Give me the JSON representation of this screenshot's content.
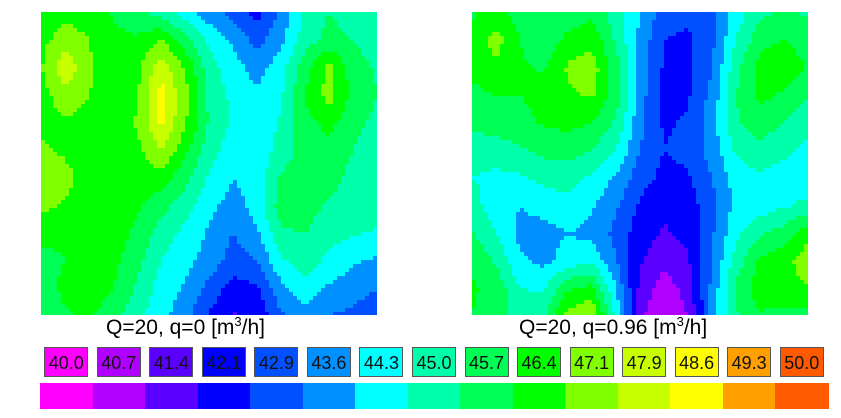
{
  "chart_data": [
    {
      "type": "heatmap",
      "caption_main": "Q=20, q=0 [m",
      "caption_sup": "3",
      "caption_tail": "/h]",
      "levels": [
        40.0,
        40.7,
        41.4,
        42.1,
        42.9,
        43.6,
        44.3,
        45.0,
        45.7,
        46.4,
        47.1,
        47.9,
        48.6,
        49.3,
        50.0
      ],
      "grid": [
        [
          46.6,
          46.9,
          46.8,
          46.3,
          45.9,
          45.3,
          44.6,
          43.9,
          43.3,
          42.6,
          43.8,
          45.2,
          45.7,
          45.4,
          45.1
        ],
        [
          46.9,
          47.4,
          47.1,
          46.6,
          46.5,
          47.1,
          46.0,
          44.8,
          44.2,
          43.3,
          44.1,
          45.4,
          45.9,
          45.7,
          45.3
        ],
        [
          47.0,
          48.6,
          47.2,
          46.7,
          46.9,
          48.4,
          47.0,
          45.3,
          44.6,
          44.0,
          44.7,
          46.1,
          47.3,
          46.0,
          45.6
        ],
        [
          46.8,
          47.5,
          47.1,
          46.8,
          47.0,
          48.9,
          47.4,
          45.5,
          44.8,
          44.4,
          44.9,
          46.5,
          47.4,
          46.2,
          45.7
        ],
        [
          46.9,
          47.0,
          46.9,
          46.6,
          47.2,
          48.8,
          47.2,
          45.6,
          44.9,
          44.5,
          45.1,
          46.2,
          46.6,
          45.9,
          45.5
        ],
        [
          47.2,
          47.0,
          46.7,
          46.4,
          46.9,
          47.9,
          46.6,
          45.3,
          44.6,
          44.5,
          45.3,
          46.0,
          46.2,
          45.7,
          45.3
        ],
        [
          47.6,
          47.3,
          46.8,
          46.5,
          46.7,
          46.8,
          45.9,
          44.9,
          44.3,
          44.6,
          45.8,
          46.2,
          45.9,
          45.5,
          45.4
        ],
        [
          47.3,
          47.0,
          46.9,
          46.9,
          46.5,
          46.0,
          45.3,
          44.5,
          44.0,
          44.6,
          46.1,
          46.0,
          45.6,
          45.6,
          45.5
        ],
        [
          46.6,
          46.5,
          46.8,
          46.8,
          46.2,
          45.4,
          44.8,
          44.2,
          43.6,
          44.2,
          45.6,
          45.7,
          45.3,
          45.1,
          44.9
        ],
        [
          46.2,
          46.4,
          46.7,
          46.6,
          45.9,
          45.0,
          44.5,
          44.0,
          43.3,
          43.6,
          44.9,
          45.4,
          44.8,
          44.4,
          44.2
        ],
        [
          46.0,
          46.6,
          46.8,
          46.4,
          45.6,
          44.7,
          44.2,
          43.4,
          42.6,
          42.8,
          44.1,
          44.7,
          44.2,
          43.9,
          43.6
        ],
        [
          45.8,
          46.3,
          46.5,
          46.0,
          45.2,
          44.5,
          43.9,
          42.8,
          42.0,
          42.3,
          43.5,
          44.0,
          43.6,
          43.4,
          43.2
        ]
      ]
    },
    {
      "type": "heatmap",
      "caption_main": "Q=20, q=0.96 [m",
      "caption_sup": "3",
      "caption_tail": "/h]",
      "levels": [
        40.0,
        40.7,
        41.4,
        42.1,
        42.9,
        43.6,
        44.3,
        45.0,
        45.7,
        46.4,
        47.1,
        47.9,
        48.6,
        49.3,
        50.0
      ],
      "grid": [
        [
          46.3,
          46.6,
          46.1,
          45.7,
          45.9,
          46.2,
          45.3,
          44.3,
          43.2,
          43.0,
          43.4,
          44.6,
          45.5,
          45.8,
          45.6
        ],
        [
          46.5,
          47.4,
          46.4,
          45.9,
          46.6,
          46.9,
          45.6,
          44.1,
          42.9,
          42.8,
          43.4,
          45.0,
          46.1,
          46.4,
          46.0
        ],
        [
          46.6,
          47.0,
          46.5,
          46.3,
          47.2,
          47.5,
          46.0,
          44.0,
          42.8,
          42.7,
          43.6,
          45.4,
          46.7,
          47.0,
          46.3
        ],
        [
          46.2,
          46.4,
          46.4,
          46.7,
          47.0,
          47.2,
          46.1,
          43.9,
          42.7,
          42.8,
          43.8,
          45.7,
          46.6,
          46.3,
          45.8
        ],
        [
          45.8,
          46.0,
          46.1,
          46.5,
          46.6,
          46.4,
          45.6,
          43.8,
          42.8,
          43.0,
          44.0,
          45.6,
          46.0,
          45.7,
          45.2
        ],
        [
          45.4,
          45.4,
          45.6,
          45.9,
          46.0,
          45.7,
          45.0,
          43.6,
          42.9,
          43.1,
          43.9,
          45.1,
          45.6,
          45.2,
          44.8
        ],
        [
          45.0,
          44.8,
          44.9,
          45.2,
          45.3,
          44.9,
          44.2,
          43.2,
          42.7,
          42.8,
          43.6,
          44.6,
          44.8,
          44.6,
          44.5
        ],
        [
          45.3,
          44.6,
          44.3,
          44.6,
          44.8,
          44.4,
          43.7,
          42.8,
          42.3,
          42.5,
          43.4,
          44.5,
          44.6,
          44.9,
          45.2
        ],
        [
          45.8,
          45.0,
          44.1,
          44.0,
          44.3,
          44.1,
          43.4,
          42.5,
          42.0,
          42.3,
          43.5,
          44.8,
          45.6,
          46.0,
          46.8
        ],
        [
          46.3,
          45.6,
          44.4,
          44.1,
          44.6,
          44.8,
          43.6,
          42.2,
          41.6,
          42.0,
          43.6,
          45.3,
          46.5,
          46.8,
          47.6
        ],
        [
          46.5,
          46.2,
          45.0,
          44.9,
          46.3,
          46.6,
          44.3,
          41.9,
          41.0,
          41.7,
          43.8,
          45.8,
          46.8,
          46.9,
          47.0
        ],
        [
          46.4,
          46.0,
          45.4,
          45.6,
          47.4,
          47.8,
          44.8,
          41.6,
          40.7,
          41.4,
          43.9,
          45.6,
          46.3,
          46.2,
          46.1
        ]
      ]
    }
  ],
  "legend": {
    "labels": [
      "40.0",
      "40.7",
      "41.4",
      "42.1",
      "42.9",
      "43.6",
      "44.3",
      "45.0",
      "45.7",
      "46.4",
      "47.1",
      "47.9",
      "48.6",
      "49.3",
      "50.0"
    ],
    "colors": [
      "#ff00ff",
      "#b000ff",
      "#5a00ff",
      "#0000ff",
      "#0050ff",
      "#0090ff",
      "#00ffff",
      "#00ffaa",
      "#00ff55",
      "#00ff00",
      "#7fff00",
      "#c8ff00",
      "#ffff00",
      "#ffa000",
      "#ff5a00"
    ]
  }
}
